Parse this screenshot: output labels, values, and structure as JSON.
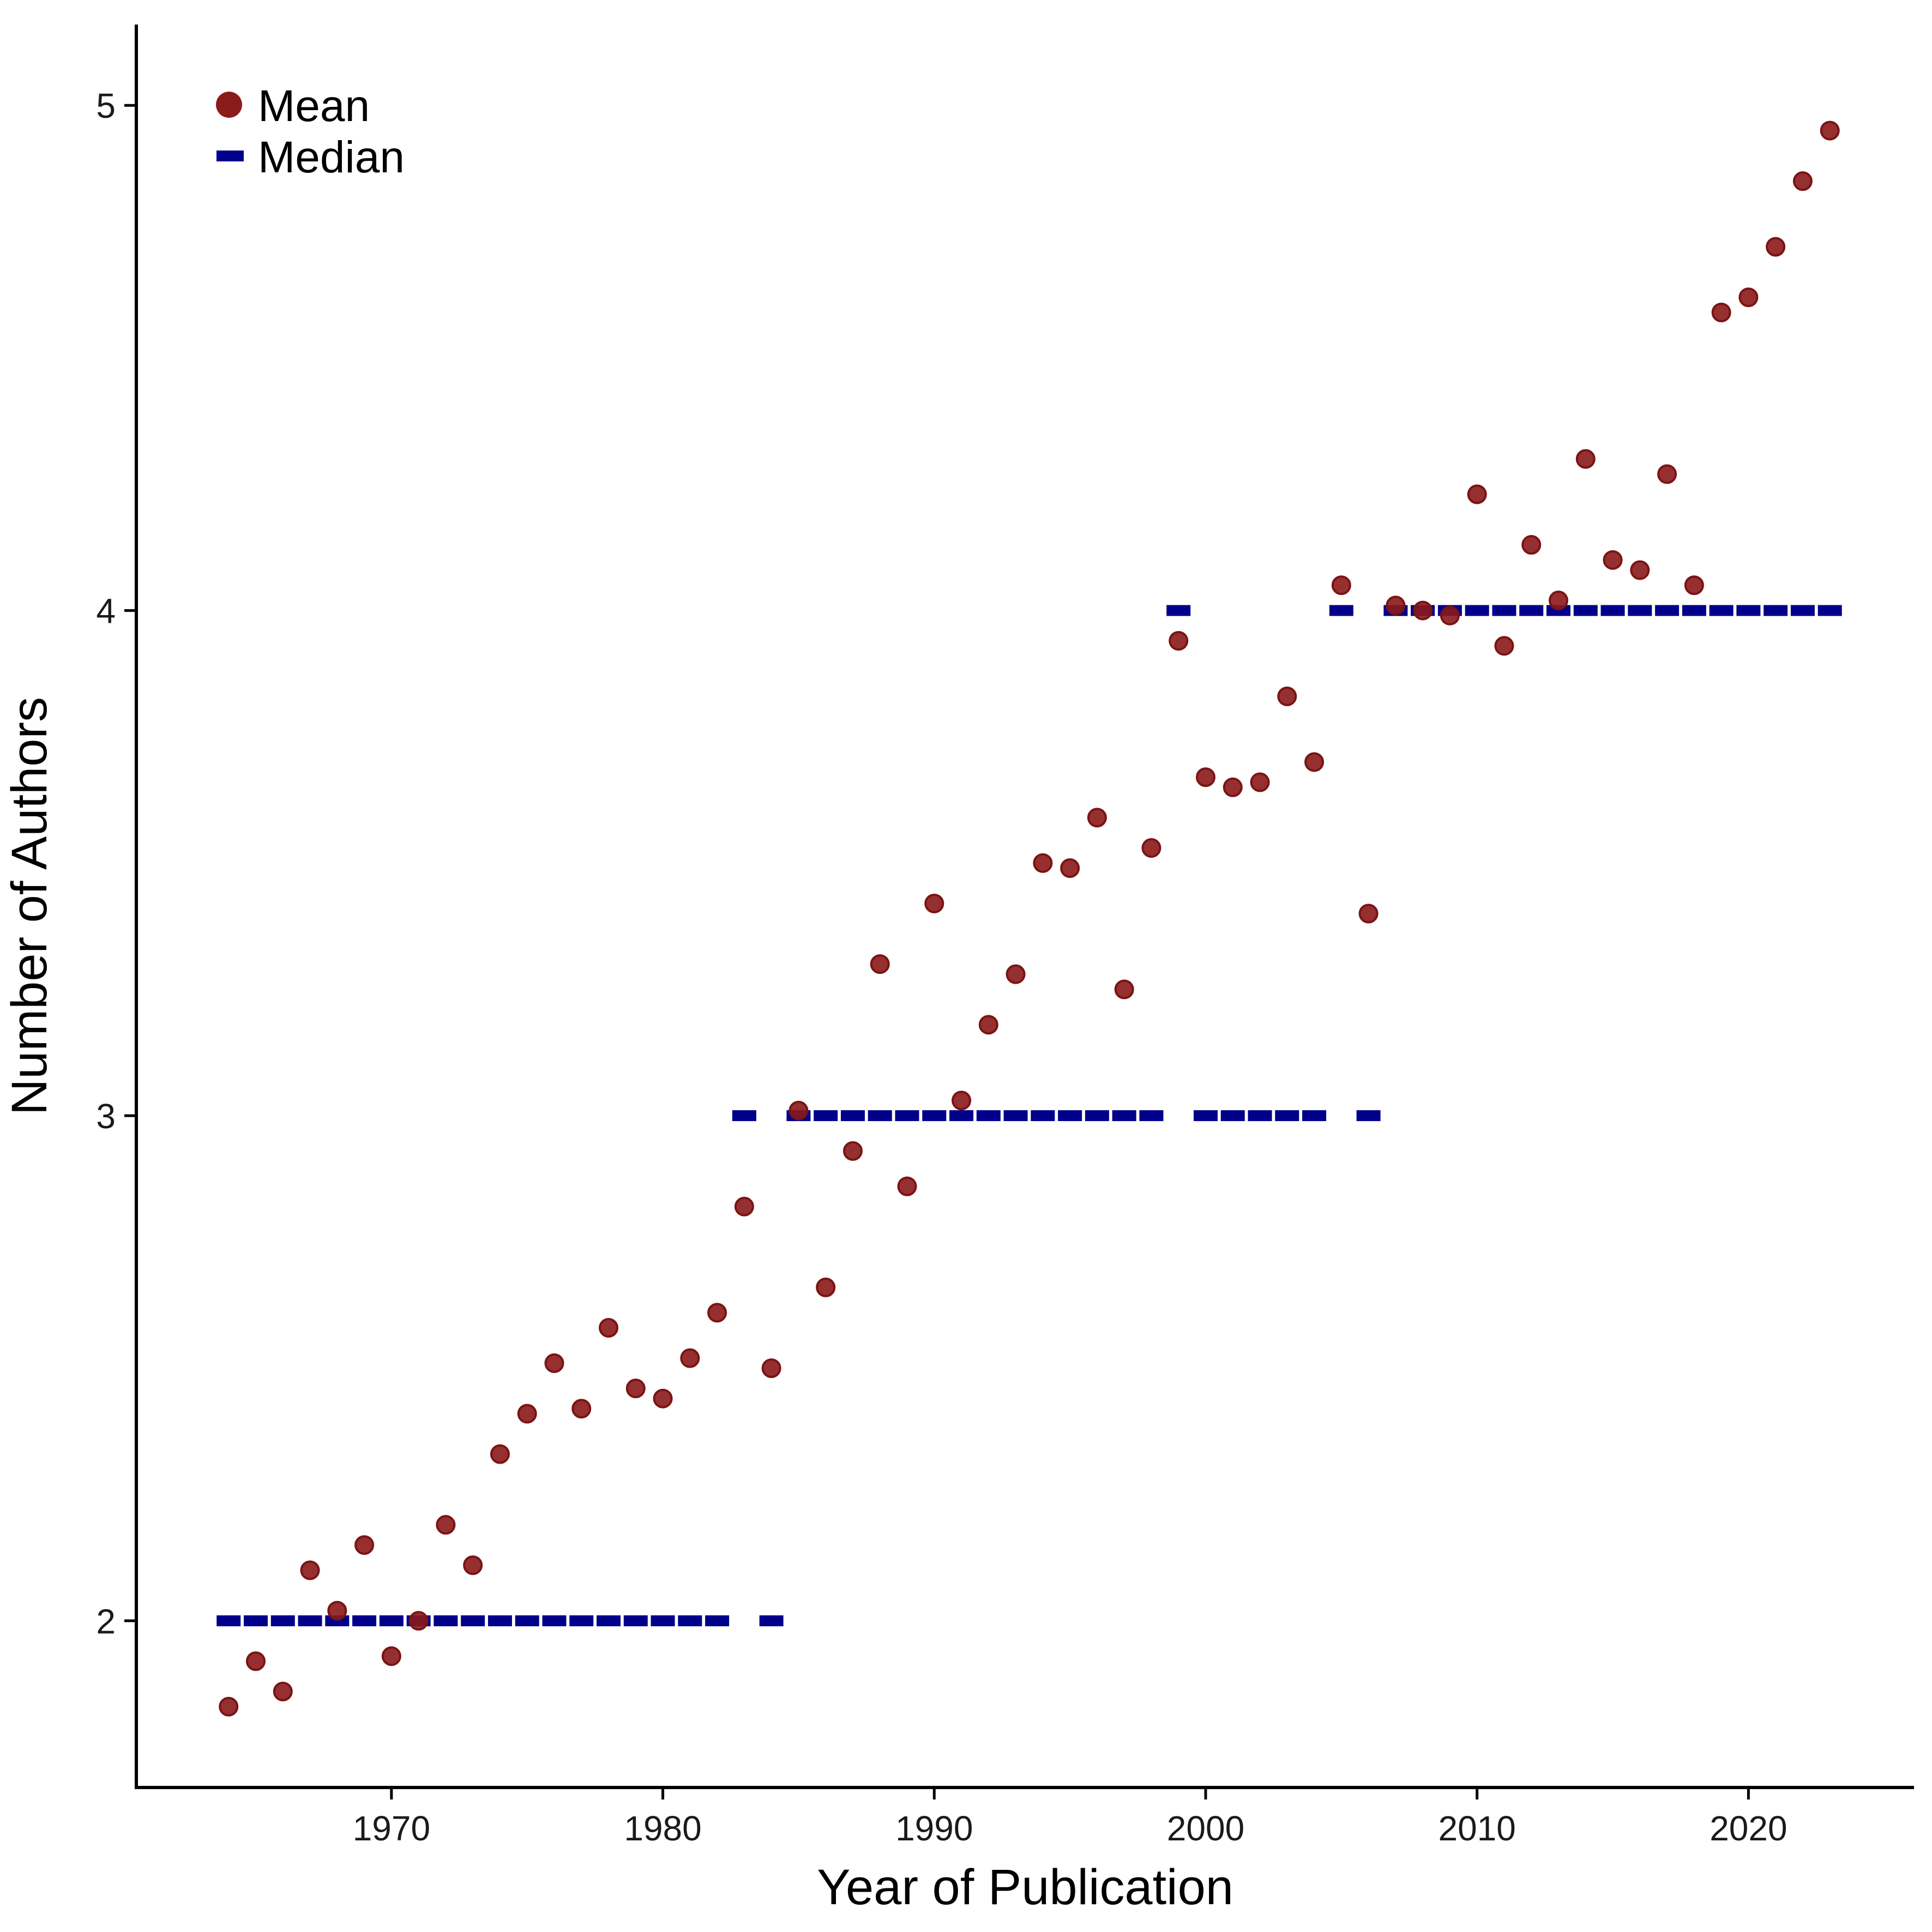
{
  "chart_data": {
    "type": "scatter",
    "xlabel": "Year of Publication",
    "ylabel": "Number of Authors",
    "xlim": [
      1960.6,
      2026.1
    ],
    "ylim": [
      1.67,
      5.16
    ],
    "x_ticks": [
      1970,
      1980,
      1990,
      2000,
      2010,
      2020
    ],
    "y_ticks": [
      2,
      3,
      4,
      5
    ],
    "x_tick_labels": [
      "1970",
      "1980",
      "1990",
      "2000",
      "2010",
      "2020"
    ],
    "y_tick_labels": [
      "2",
      "3",
      "4",
      "5"
    ],
    "grid": false,
    "legend_position": "top-left",
    "colors": {
      "mean": "#8B1A1A",
      "median": "#00008B",
      "axis": "#000000"
    },
    "series": [
      {
        "name": "Mean",
        "marker": "circle",
        "x": [
          1964,
          1965,
          1966,
          1967,
          1968,
          1969,
          1970,
          1971,
          1972,
          1973,
          1974,
          1975,
          1976,
          1977,
          1978,
          1979,
          1980,
          1981,
          1982,
          1983,
          1984,
          1985,
          1986,
          1987,
          1988,
          1989,
          1990,
          1991,
          1992,
          1993,
          1994,
          1995,
          1996,
          1997,
          1998,
          1999,
          2000,
          2001,
          2002,
          2003,
          2004,
          2005,
          2006,
          2007,
          2008,
          2009,
          2010,
          2011,
          2012,
          2013,
          2014,
          2015,
          2016,
          2017,
          2018,
          2019,
          2020,
          2021,
          2022,
          2023
        ],
        "y": [
          1.83,
          1.92,
          1.86,
          2.1,
          2.02,
          2.15,
          1.93,
          2.0,
          2.19,
          2.11,
          2.33,
          2.41,
          2.51,
          2.42,
          2.58,
          2.46,
          2.44,
          2.52,
          2.61,
          2.82,
          2.5,
          3.01,
          2.66,
          2.93,
          3.3,
          2.86,
          3.42,
          3.03,
          3.18,
          3.28,
          3.5,
          3.49,
          3.59,
          3.25,
          3.53,
          3.94,
          3.67,
          3.65,
          3.66,
          3.83,
          3.7,
          4.05,
          3.4,
          4.01,
          4.0,
          3.99,
          4.23,
          3.93,
          4.13,
          4.02,
          4.3,
          4.1,
          4.08,
          4.27,
          4.05,
          4.59,
          4.62,
          4.72,
          4.85,
          4.95
        ]
      },
      {
        "name": "Median",
        "marker": "dash",
        "x": [
          1964,
          1965,
          1966,
          1967,
          1968,
          1969,
          1970,
          1971,
          1972,
          1973,
          1974,
          1975,
          1976,
          1977,
          1978,
          1979,
          1980,
          1981,
          1982,
          1983,
          1984,
          1985,
          1986,
          1987,
          1988,
          1989,
          1990,
          1991,
          1992,
          1993,
          1994,
          1995,
          1996,
          1997,
          1998,
          1999,
          2000,
          2001,
          2002,
          2003,
          2004,
          2005,
          2006,
          2007,
          2008,
          2009,
          2010,
          2011,
          2012,
          2013,
          2014,
          2015,
          2016,
          2017,
          2018,
          2019,
          2020,
          2021,
          2022,
          2023
        ],
        "y": [
          2,
          2,
          2,
          2,
          2,
          2,
          2,
          2,
          2,
          2,
          2,
          2,
          2,
          2,
          2,
          2,
          2,
          2,
          2,
          3,
          2,
          3,
          3,
          3,
          3,
          3,
          3,
          3,
          3,
          3,
          3,
          3,
          3,
          3,
          3,
          4,
          3,
          3,
          3,
          3,
          3,
          4,
          3,
          4,
          4,
          4,
          4,
          4,
          4,
          4,
          4,
          4,
          4,
          4,
          4,
          4,
          4,
          4,
          4,
          4
        ]
      }
    ]
  }
}
